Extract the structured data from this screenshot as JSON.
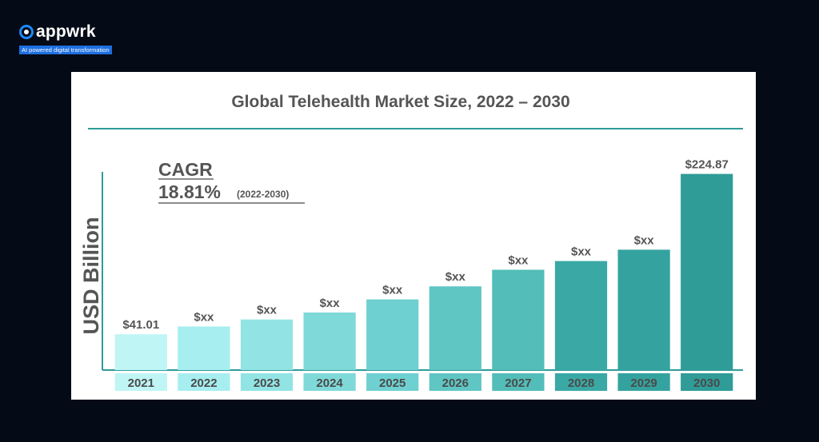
{
  "brand": {
    "name": "appwrk",
    "tagline": "AI powered digital transformation"
  },
  "chart_data": {
    "type": "bar",
    "title": "Global Telehealth Market Size, 2022 – 2030",
    "ylabel": "USD Billion",
    "xlabel": "",
    "cagr": {
      "label": "CAGR",
      "value": "18.81%",
      "period": "(2022-2030)"
    },
    "categories": [
      "2021",
      "2022",
      "2023",
      "2024",
      "2025",
      "2026",
      "2027",
      "2028",
      "2029",
      "2030"
    ],
    "values": [
      41.01,
      50,
      58,
      66,
      81,
      96,
      115,
      125,
      138,
      224.87
    ],
    "data_labels": [
      "$41.01",
      "$xx",
      "$xx",
      "$xx",
      "$xx",
      "$xx",
      "$xx",
      "$xx",
      "$xx",
      "$224.87"
    ],
    "ylim": [
      0,
      230
    ],
    "grid": false,
    "colors": [
      "#bff5f5",
      "#a6eeef",
      "#92e4e4",
      "#7fd9d9",
      "#6ed0d0",
      "#5fc6c4",
      "#52bdb9",
      "#3aa9a5",
      "#34a39f",
      "#2f9c98"
    ],
    "accent": "#2e9c98"
  }
}
